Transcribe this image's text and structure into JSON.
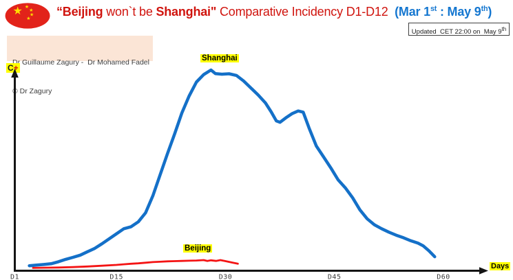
{
  "colors": {
    "title_red": "#d0140e",
    "title_blue": "#1577d0",
    "label_red": "#ee1111",
    "dark": "#16161e",
    "highlight": "#ffff00",
    "flag_red": "#e2231a",
    "star_yellow": "#ffde00",
    "axis_black": "#141414"
  },
  "icons": {
    "star_glyph": "★"
  },
  "header": {
    "title_segments": [
      {
        "t": "“Beijing",
        "b": true,
        "c": "title_red"
      },
      {
        "t": " won`t be ",
        "b": false,
        "c": "title_red"
      },
      {
        "t": "Shanghai\"",
        "b": true,
        "c": "title_red"
      },
      {
        "t": " Comparative Incidency D1-D12 ",
        "b": false,
        "c": "title_red"
      },
      {
        "t": " (Mar 1",
        "b": true,
        "c": "title_blue"
      },
      {
        "t": "st",
        "b": true,
        "c": "title_blue",
        "sup": true
      },
      {
        "t": " : May 9",
        "b": true,
        "c": "title_blue"
      },
      {
        "t": "th",
        "b": true,
        "c": "title_blue",
        "sup": true
      },
      {
        "t": ")",
        "b": true,
        "c": "title_blue"
      }
    ],
    "updated_segments": [
      {
        "t": "Updated  CET 22:00 on  May 9"
      },
      {
        "t": "th",
        "sup": true
      }
    ]
  },
  "authors": {
    "line1": "Dr Guillaume Zagury -  Dr Mohamed Fadel",
    "line2": "© Dr Zagury"
  },
  "y_axis_label_segments": [
    {
      "t": "C",
      "b": true,
      "c": "dark"
    },
    {
      "t": "+",
      "b": true,
      "c": "title_red"
    }
  ],
  "labels": {
    "shanghai": "Shanghai",
    "beijing": "Beijing",
    "days": "Days"
  },
  "chart_data": {
    "type": "line",
    "title": "\"Beijing won`t be Shanghai\" Comparative Incidency D1-D12 (Mar 1st : May 9th)",
    "xlabel": "Days",
    "ylabel": "C+ (daily positive cases, no numeric scale shown)",
    "grid": false,
    "legend_position": "inline-labels-on-curves",
    "x_axis": {
      "range_days": [
        1,
        65
      ],
      "ticks": [
        {
          "label": "D1",
          "day": 1
        },
        {
          "label": "D15",
          "day": 15
        },
        {
          "label": "D30",
          "day": 30
        },
        {
          "label": "D45",
          "day": 45
        },
        {
          "label": "D60",
          "day": 60
        }
      ]
    },
    "y_axis": {
      "range": [
        0,
        100
      ],
      "note": "unlabeled axis; values expressed as % of Shanghai peak"
    },
    "series": [
      {
        "name": "Shanghai",
        "color": "#1470c8",
        "stroke_width": 4.5,
        "points": [
          [
            3,
            2
          ],
          [
            4,
            2.3
          ],
          [
            5,
            2.6
          ],
          [
            6,
            3
          ],
          [
            7,
            4
          ],
          [
            8,
            5.2
          ],
          [
            9,
            6.2
          ],
          [
            10,
            7.3
          ],
          [
            11,
            9
          ],
          [
            12,
            10.7
          ],
          [
            13,
            13
          ],
          [
            14,
            15.5
          ],
          [
            15,
            18
          ],
          [
            16,
            20.5
          ],
          [
            17,
            21.5
          ],
          [
            18,
            24
          ],
          [
            19,
            28.5
          ],
          [
            20,
            37
          ],
          [
            21,
            47.5
          ],
          [
            22,
            58
          ],
          [
            23,
            68
          ],
          [
            24,
            78.5
          ],
          [
            25,
            87
          ],
          [
            26,
            94
          ],
          [
            27,
            97.7
          ],
          [
            28,
            100
          ],
          [
            28.6,
            98.2
          ],
          [
            29.5,
            97.9
          ],
          [
            30.5,
            98.1
          ],
          [
            31.5,
            97.3
          ],
          [
            32.5,
            94.5
          ],
          [
            33.5,
            91
          ],
          [
            34.5,
            87.5
          ],
          [
            35.5,
            83.5
          ],
          [
            36.3,
            79
          ],
          [
            37,
            74.5
          ],
          [
            37.5,
            73.8
          ],
          [
            38.3,
            76
          ],
          [
            39.2,
            78.2
          ],
          [
            40,
            79.5
          ],
          [
            40.7,
            78.9
          ],
          [
            41.5,
            71
          ],
          [
            42.5,
            62
          ],
          [
            43.5,
            56.5
          ],
          [
            44.5,
            51
          ],
          [
            45.5,
            45
          ],
          [
            46.5,
            41
          ],
          [
            47.5,
            36
          ],
          [
            48.5,
            30
          ],
          [
            49.5,
            25.5
          ],
          [
            50.5,
            22.5
          ],
          [
            51.5,
            20.5
          ],
          [
            52.5,
            18.8
          ],
          [
            53.5,
            17.3
          ],
          [
            54.5,
            16
          ],
          [
            55.5,
            14.5
          ],
          [
            56.5,
            13.3
          ],
          [
            57.2,
            12
          ],
          [
            58,
            9.5
          ],
          [
            58.8,
            6.5
          ]
        ]
      },
      {
        "name": "Beijing",
        "color": "#f41414",
        "stroke_width": 2.8,
        "points": [
          [
            3.5,
            0.9
          ],
          [
            5,
            1
          ],
          [
            7,
            1.1
          ],
          [
            9,
            1.3
          ],
          [
            11,
            1.6
          ],
          [
            13,
            2
          ],
          [
            15,
            2.4
          ],
          [
            16,
            2.7
          ],
          [
            17,
            3
          ],
          [
            18,
            3.2
          ],
          [
            19,
            3.5
          ],
          [
            20,
            3.8
          ],
          [
            21,
            4
          ],
          [
            22,
            4.2
          ],
          [
            23,
            4.3
          ],
          [
            24,
            4.4
          ],
          [
            25,
            4.5
          ],
          [
            26,
            4.6
          ],
          [
            27,
            4.8
          ],
          [
            27.5,
            4.4
          ],
          [
            28,
            4.7
          ],
          [
            28.7,
            4.4
          ],
          [
            29.3,
            4.8
          ],
          [
            30,
            4.3
          ],
          [
            31,
            3.5
          ],
          [
            31.7,
            3
          ]
        ]
      }
    ]
  }
}
